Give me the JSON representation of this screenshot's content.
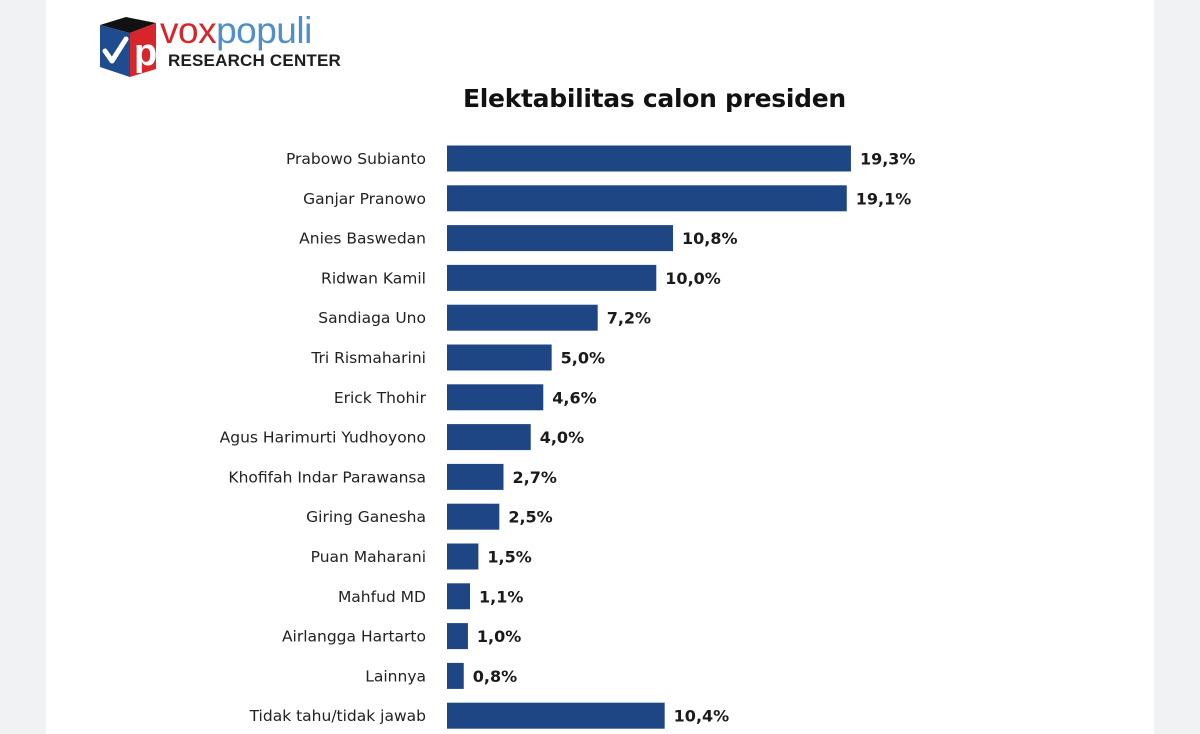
{
  "brand": {
    "name_part1": "vox",
    "name_part2": "populi",
    "subtitle": "RESEARCH CENTER",
    "logo_letter": "p",
    "colors": {
      "red": "#d6262b",
      "blue": "#4f8fc9",
      "navy": "#1f3f7a"
    }
  },
  "chart_data": {
    "type": "bar",
    "orientation": "horizontal",
    "title": "Elektabilitas calon presiden",
    "xlabel": "",
    "ylabel": "",
    "unit": "%",
    "grid": false,
    "bar_color": "#1f4684",
    "xlim": [
      0,
      20
    ],
    "categories": [
      "Prabowo Subianto",
      "Ganjar Pranowo",
      "Anies Baswedan",
      "Ridwan Kamil",
      "Sandiaga Uno",
      "Tri Rismaharini",
      "Erick Thohir",
      "Agus Harimurti Yudhoyono",
      "Khofifah Indar Parawansa",
      "Giring Ganesha",
      "Puan Maharani",
      "Mahfud MD",
      "Airlangga Hartarto",
      "Lainnya",
      "Tidak tahu/tidak jawab"
    ],
    "values": [
      19.3,
      19.1,
      10.8,
      10.0,
      7.2,
      5.0,
      4.6,
      4.0,
      2.7,
      2.5,
      1.5,
      1.1,
      1.0,
      0.8,
      10.4
    ],
    "data_labels": [
      "19,3%",
      "19,1%",
      "10,8%",
      "10,0%",
      "7,2%",
      "5,0%",
      "4,6%",
      "4,0%",
      "2,7%",
      "2,5%",
      "1,5%",
      "1,1%",
      "1,0%",
      "0,8%",
      "10,4%"
    ],
    "label_bold": [
      true,
      true,
      true,
      true,
      true,
      true,
      true,
      true,
      true,
      true,
      true,
      true,
      true,
      true,
      false
    ]
  }
}
